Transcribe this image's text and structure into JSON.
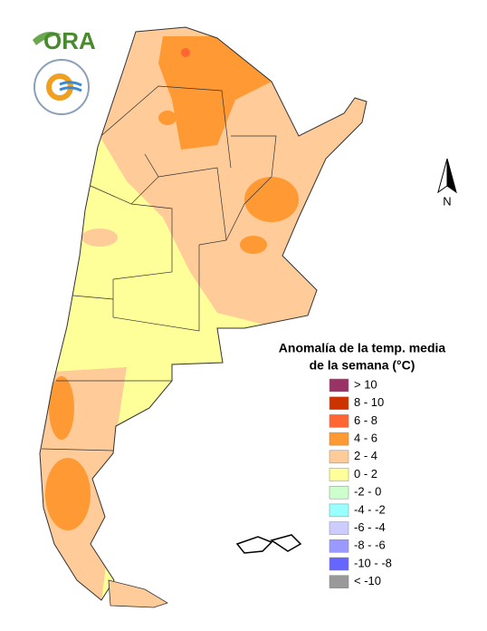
{
  "logo": {
    "text": "ORA"
  },
  "north_label": "N",
  "legend": {
    "title_lines": [
      "Anomalía de la temp. media",
      "de la semana (°C)"
    ],
    "items": [
      {
        "label": "> 10",
        "color": "#993366"
      },
      {
        "label": "8 - 10",
        "color": "#cc3300"
      },
      {
        "label": "6 - 8",
        "color": "#ff6633"
      },
      {
        "label": "4 - 6",
        "color": "#ff9933"
      },
      {
        "label": "2 - 4",
        "color": "#ffcc99"
      },
      {
        "label": "0 - 2",
        "color": "#ffff99"
      },
      {
        "label": "-2 - 0",
        "color": "#ccffcc"
      },
      {
        "label": "-4 - -2",
        "color": "#99ffff"
      },
      {
        "label": "-6 - -4",
        "color": "#ccccff"
      },
      {
        "label": "-8 - -6",
        "color": "#9999ff"
      },
      {
        "label": "-10 - -8",
        "color": "#6666ff"
      },
      {
        "label": "< -10",
        "color": "#999999"
      }
    ]
  }
}
